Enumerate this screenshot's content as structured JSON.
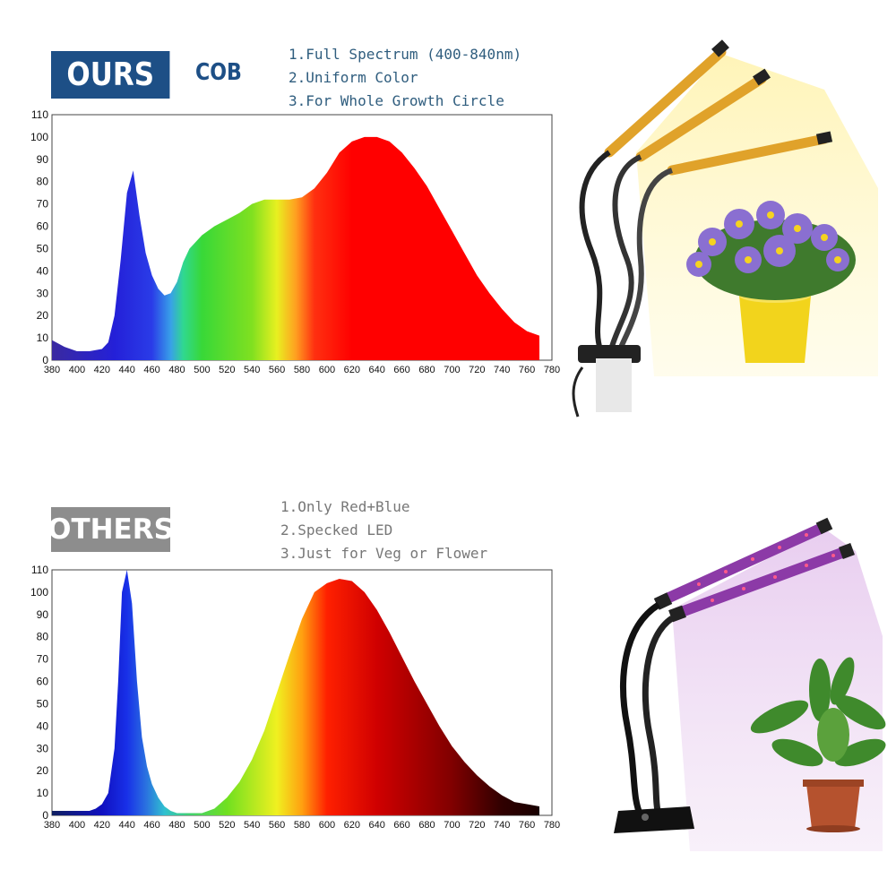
{
  "ours": {
    "badge": "OURS",
    "tag": "COB",
    "features": [
      "1.Full Spectrum (400-840nm)",
      "2.Uniform Color",
      "3.For Whole Growth Circle"
    ]
  },
  "others": {
    "badge": "OTHERS",
    "features": [
      "1.Only Red+Blue",
      "2.Specked LED",
      "3.Just for Veg or Flower"
    ]
  },
  "chart_data": [
    {
      "type": "area",
      "title": "",
      "xlabel": "",
      "ylabel": "",
      "xlim": [
        380,
        780
      ],
      "ylim": [
        0,
        110
      ],
      "xticks": [
        380,
        400,
        420,
        440,
        460,
        480,
        500,
        520,
        540,
        560,
        580,
        600,
        620,
        640,
        660,
        680,
        700,
        720,
        740,
        760,
        780
      ],
      "yticks": [
        0,
        10,
        20,
        30,
        40,
        50,
        60,
        70,
        80,
        90,
        100,
        110
      ],
      "grid": false,
      "x": [
        380,
        390,
        400,
        410,
        420,
        425,
        430,
        435,
        440,
        445,
        450,
        455,
        460,
        465,
        470,
        475,
        480,
        485,
        490,
        500,
        510,
        520,
        530,
        540,
        550,
        560,
        570,
        580,
        590,
        600,
        610,
        620,
        630,
        640,
        650,
        660,
        670,
        680,
        690,
        700,
        710,
        720,
        730,
        740,
        750,
        760,
        770
      ],
      "y": [
        9,
        6,
        4,
        4,
        5,
        8,
        20,
        45,
        75,
        85,
        65,
        48,
        38,
        32,
        29,
        30,
        35,
        44,
        50,
        56,
        60,
        63,
        66,
        70,
        72,
        72,
        72,
        73,
        77,
        84,
        93,
        98,
        100,
        100,
        98,
        93,
        86,
        78,
        68,
        58,
        48,
        38,
        30,
        23,
        17,
        13,
        11
      ]
    },
    {
      "type": "area",
      "title": "",
      "xlabel": "",
      "ylabel": "",
      "xlim": [
        380,
        780
      ],
      "ylim": [
        0,
        110
      ],
      "xticks": [
        380,
        400,
        420,
        440,
        460,
        480,
        500,
        520,
        540,
        560,
        580,
        600,
        620,
        640,
        660,
        680,
        700,
        720,
        740,
        760,
        780
      ],
      "yticks": [
        0,
        10,
        20,
        30,
        40,
        50,
        60,
        70,
        80,
        90,
        100,
        110
      ],
      "grid": false,
      "x": [
        380,
        390,
        400,
        410,
        415,
        420,
        425,
        430,
        433,
        436,
        440,
        444,
        448,
        452,
        456,
        460,
        465,
        470,
        475,
        480,
        490,
        500,
        510,
        520,
        530,
        540,
        550,
        560,
        570,
        580,
        590,
        600,
        610,
        620,
        630,
        640,
        650,
        660,
        670,
        680,
        690,
        700,
        710,
        720,
        730,
        740,
        750,
        760,
        770
      ],
      "y": [
        2,
        2,
        2,
        2,
        3,
        5,
        10,
        30,
        60,
        100,
        110,
        95,
        60,
        35,
        22,
        14,
        8,
        4,
        2,
        1,
        1,
        1,
        3,
        8,
        15,
        25,
        38,
        55,
        72,
        88,
        100,
        104,
        106,
        105,
        100,
        92,
        82,
        71,
        60,
        50,
        40,
        31,
        24,
        18,
        13,
        9,
        6,
        5,
        4
      ]
    }
  ]
}
